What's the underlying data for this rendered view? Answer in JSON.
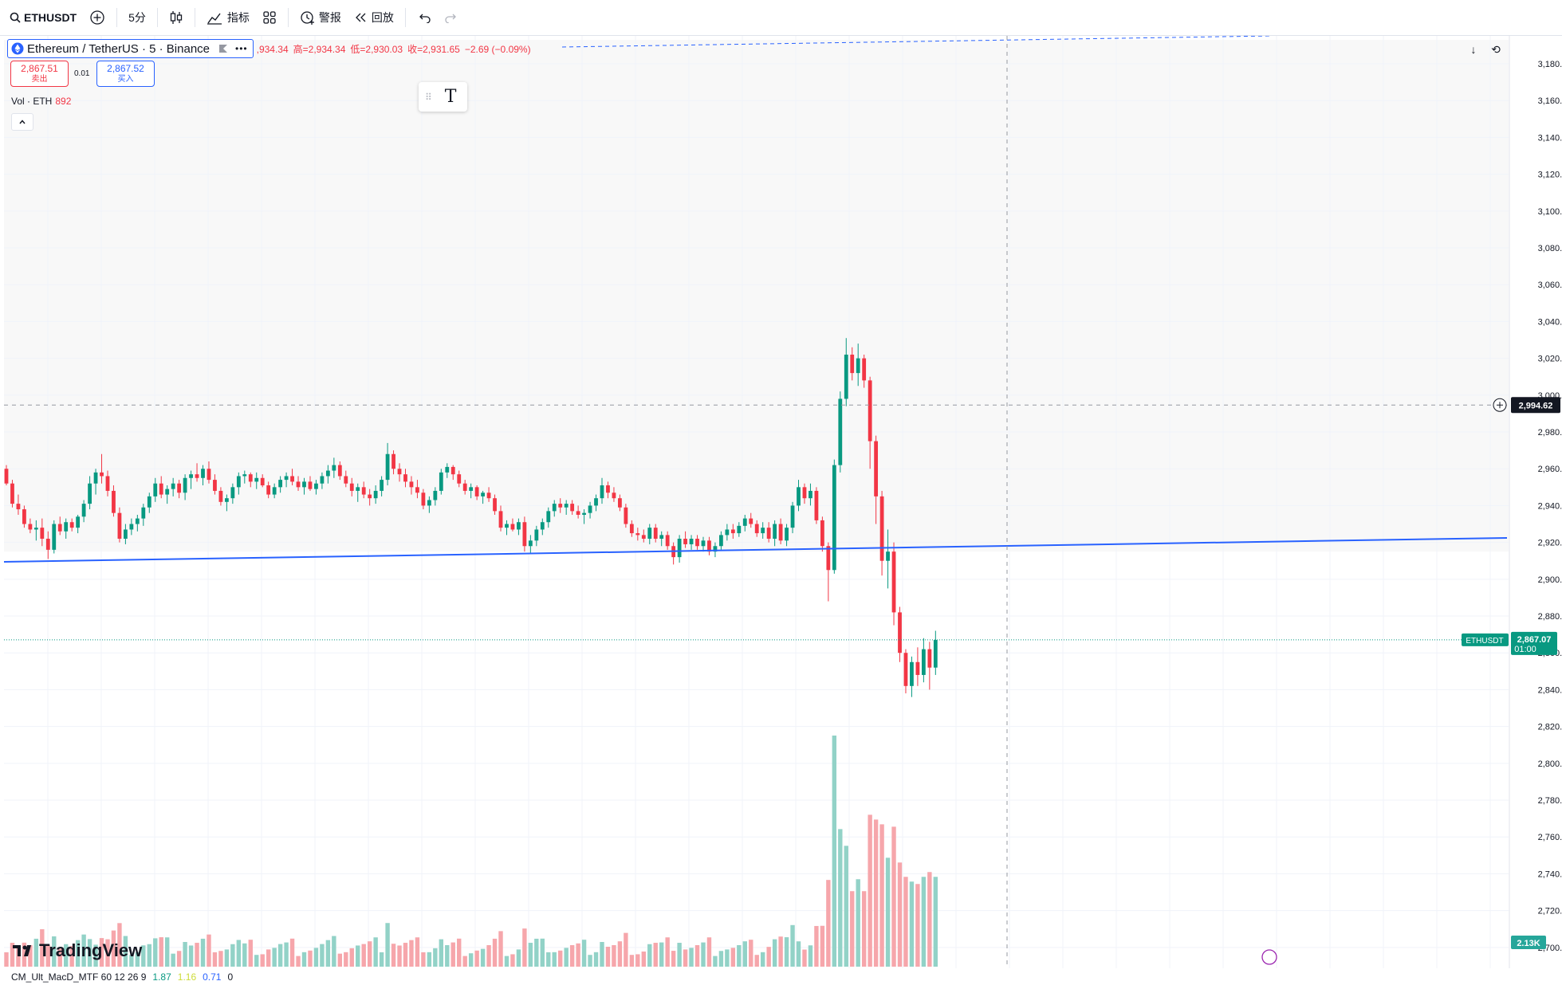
{
  "toolbar": {
    "symbol": "ETHUSDT",
    "interval": "5分",
    "indicators_label": "指标",
    "alerts_label": "警报",
    "replay_label": "回放"
  },
  "legend": {
    "title": "Ethereum / TetherUS · 5 · Binance",
    "ohlc": {
      "open": ",934.34",
      "high": "高=2,934.34",
      "low": "低=2,930.03",
      "close": "收=2,931.65",
      "change": "−2.69 (−0.09%)"
    }
  },
  "trade": {
    "sell_price": "2,867.51",
    "sell_label": "卖出",
    "spread": "0.01",
    "buy_price": "2,867.52",
    "buy_label": "买入"
  },
  "volume_legend": {
    "label": "Vol · ETH",
    "value": "892"
  },
  "price_axis": {
    "ticks": [
      "3,180.00",
      "3,160.00",
      "3,140.00",
      "3,120.00",
      "3,100.00",
      "3,080.00",
      "3,060.00",
      "3,040.00",
      "3,020.00",
      "3,000.00",
      "2,980.00",
      "2,960.00",
      "2,940.00",
      "2,920.00",
      "2,900.00",
      "2,880.00",
      "2,860.00",
      "2,840.00",
      "2,820.00",
      "2,800.00",
      "2,780.00",
      "2,760.00",
      "2,740.00",
      "2,720.00",
      "2,700.00"
    ],
    "crosshair_price": "2,994.62",
    "last_symbol": "ETHUSDT",
    "last_price": "2,867.07",
    "countdown": "01:00",
    "volume_badge": "2.13K"
  },
  "bottom_indicator": {
    "name": "CM_Ult_MacD_MTF 60 12 26 9",
    "v1": "1.87",
    "v2": "1.16",
    "v3": "0.71",
    "v4": "0"
  },
  "brand": {
    "logo_text": "TradingView"
  },
  "colors": {
    "up": "#089981",
    "down": "#f23645",
    "up_vol": "#92d2c7",
    "down_vol": "#f6a6ab",
    "trendline": "#2962ff"
  },
  "chart_data": {
    "type": "candlestick",
    "ylim": [
      2693,
      3193
    ],
    "candles": [
      [
        2960,
        2962,
        2951,
        2952
      ],
      [
        2952,
        2954,
        2939,
        2941
      ],
      [
        2941,
        2946,
        2935,
        2938
      ],
      [
        2938,
        2940,
        2928,
        2930
      ],
      [
        2930,
        2933,
        2925,
        2927
      ],
      [
        2927,
        2932,
        2921,
        2928
      ],
      [
        2928,
        2933,
        2918,
        2922
      ],
      [
        2922,
        2926,
        2911,
        2916
      ],
      [
        2916,
        2932,
        2914,
        2930
      ],
      [
        2930,
        2934,
        2924,
        2926
      ],
      [
        2926,
        2933,
        2922,
        2931
      ],
      [
        2931,
        2933,
        2926,
        2928
      ],
      [
        2928,
        2935,
        2925,
        2934
      ],
      [
        2934,
        2943,
        2931,
        2941
      ],
      [
        2941,
        2956,
        2938,
        2952
      ],
      [
        2952,
        2960,
        2946,
        2958
      ],
      [
        2958,
        2968,
        2952,
        2956
      ],
      [
        2956,
        2959,
        2945,
        2948
      ],
      [
        2948,
        2951,
        2934,
        2936
      ],
      [
        2936,
        2939,
        2920,
        2922
      ],
      [
        2922,
        2930,
        2919,
        2927
      ],
      [
        2927,
        2933,
        2924,
        2930
      ],
      [
        2930,
        2935,
        2926,
        2933
      ],
      [
        2933,
        2941,
        2929,
        2939
      ],
      [
        2939,
        2947,
        2936,
        2945
      ],
      [
        2945,
        2955,
        2942,
        2952
      ],
      [
        2952,
        2956,
        2944,
        2946
      ],
      [
        2946,
        2951,
        2941,
        2949
      ],
      [
        2949,
        2955,
        2945,
        2952
      ],
      [
        2952,
        2954,
        2944,
        2947
      ],
      [
        2947,
        2957,
        2943,
        2955
      ],
      [
        2955,
        2959,
        2949,
        2957
      ],
      [
        2957,
        2963,
        2953,
        2955
      ],
      [
        2955,
        2962,
        2951,
        2960
      ],
      [
        2960,
        2964,
        2952,
        2954
      ],
      [
        2954,
        2957,
        2946,
        2948
      ],
      [
        2948,
        2950,
        2940,
        2942
      ],
      [
        2942,
        2946,
        2937,
        2944
      ],
      [
        2944,
        2952,
        2941,
        2950
      ],
      [
        2950,
        2958,
        2946,
        2956
      ],
      [
        2956,
        2959,
        2952,
        2957
      ],
      [
        2957,
        2958,
        2950,
        2953
      ],
      [
        2953,
        2958,
        2949,
        2955
      ],
      [
        2955,
        2957,
        2950,
        2951
      ],
      [
        2951,
        2953,
        2944,
        2946
      ],
      [
        2946,
        2952,
        2944,
        2950
      ],
      [
        2950,
        2956,
        2947,
        2954
      ],
      [
        2954,
        2958,
        2950,
        2956
      ],
      [
        2956,
        2960,
        2951,
        2953
      ],
      [
        2953,
        2956,
        2948,
        2950
      ],
      [
        2950,
        2955,
        2946,
        2953
      ],
      [
        2953,
        2956,
        2948,
        2949
      ],
      [
        2949,
        2954,
        2946,
        2952
      ],
      [
        2952,
        2958,
        2949,
        2956
      ],
      [
        2956,
        2962,
        2952,
        2959
      ],
      [
        2959,
        2966,
        2955,
        2962
      ],
      [
        2962,
        2964,
        2954,
        2956
      ],
      [
        2956,
        2959,
        2950,
        2952
      ],
      [
        2952,
        2955,
        2945,
        2948
      ],
      [
        2948,
        2952,
        2942,
        2950
      ],
      [
        2950,
        2953,
        2944,
        2946
      ],
      [
        2946,
        2949,
        2940,
        2944
      ],
      [
        2944,
        2951,
        2941,
        2948
      ],
      [
        2948,
        2956,
        2945,
        2954
      ],
      [
        2954,
        2974,
        2951,
        2968
      ],
      [
        2968,
        2970,
        2957,
        2960
      ],
      [
        2960,
        2963,
        2953,
        2957
      ],
      [
        2957,
        2960,
        2950,
        2953
      ],
      [
        2953,
        2956,
        2946,
        2950
      ],
      [
        2950,
        2954,
        2944,
        2947
      ],
      [
        2947,
        2949,
        2938,
        2940
      ],
      [
        2940,
        2945,
        2936,
        2943
      ],
      [
        2943,
        2950,
        2940,
        2948
      ],
      [
        2948,
        2960,
        2946,
        2958
      ],
      [
        2958,
        2963,
        2955,
        2961
      ],
      [
        2961,
        2962,
        2954,
        2957
      ],
      [
        2957,
        2959,
        2950,
        2952
      ],
      [
        2952,
        2954,
        2946,
        2948
      ],
      [
        2948,
        2952,
        2944,
        2950
      ],
      [
        2950,
        2951,
        2943,
        2945
      ],
      [
        2945,
        2948,
        2941,
        2947
      ],
      [
        2947,
        2950,
        2942,
        2944
      ],
      [
        2944,
        2946,
        2935,
        2937
      ],
      [
        2937,
        2940,
        2926,
        2928
      ],
      [
        2928,
        2932,
        2924,
        2930
      ],
      [
        2930,
        2933,
        2926,
        2927
      ],
      [
        2927,
        2933,
        2924,
        2931
      ],
      [
        2931,
        2934,
        2915,
        2918
      ],
      [
        2918,
        2924,
        2914,
        2921
      ],
      [
        2921,
        2929,
        2918,
        2927
      ],
      [
        2927,
        2933,
        2924,
        2931
      ],
      [
        2931,
        2939,
        2928,
        2937
      ],
      [
        2937,
        2943,
        2934,
        2941
      ],
      [
        2941,
        2944,
        2936,
        2939
      ],
      [
        2939,
        2943,
        2935,
        2941
      ],
      [
        2941,
        2943,
        2935,
        2937
      ],
      [
        2937,
        2940,
        2933,
        2935
      ],
      [
        2935,
        2938,
        2930,
        2936
      ],
      [
        2936,
        2942,
        2933,
        2940
      ],
      [
        2940,
        2946,
        2937,
        2944
      ],
      [
        2944,
        2955,
        2941,
        2951
      ],
      [
        2951,
        2953,
        2944,
        2947
      ],
      [
        2947,
        2950,
        2942,
        2944
      ],
      [
        2944,
        2946,
        2937,
        2939
      ],
      [
        2939,
        2941,
        2928,
        2930
      ],
      [
        2930,
        2932,
        2923,
        2925
      ],
      [
        2925,
        2928,
        2921,
        2924
      ],
      [
        2924,
        2927,
        2920,
        2922
      ],
      [
        2922,
        2930,
        2919,
        2928
      ],
      [
        2928,
        2930,
        2920,
        2922
      ],
      [
        2922,
        2926,
        2918,
        2924
      ],
      [
        2924,
        2926,
        2916,
        2918
      ],
      [
        2918,
        2920,
        2908,
        2912
      ],
      [
        2912,
        2924,
        2909,
        2922
      ],
      [
        2922,
        2926,
        2917,
        2919
      ],
      [
        2919,
        2924,
        2916,
        2922
      ],
      [
        2922,
        2924,
        2916,
        2918
      ],
      [
        2918,
        2923,
        2915,
        2921
      ],
      [
        2921,
        2923,
        2913,
        2915
      ],
      [
        2915,
        2920,
        2912,
        2918
      ],
      [
        2918,
        2926,
        2916,
        2924
      ],
      [
        2924,
        2930,
        2921,
        2927
      ],
      [
        2927,
        2930,
        2922,
        2925
      ],
      [
        2925,
        2931,
        2923,
        2929
      ],
      [
        2929,
        2935,
        2926,
        2933
      ],
      [
        2933,
        2936,
        2928,
        2930
      ],
      [
        2930,
        2932,
        2923,
        2925
      ],
      [
        2925,
        2931,
        2922,
        2928
      ],
      [
        2928,
        2931,
        2920,
        2922
      ],
      [
        2922,
        2932,
        2918,
        2930
      ],
      [
        2930,
        2933,
        2919,
        2921
      ],
      [
        2921,
        2930,
        2918,
        2928
      ],
      [
        2928,
        2942,
        2925,
        2940
      ],
      [
        2940,
        2954,
        2937,
        2950
      ],
      [
        2950,
        2952,
        2941,
        2944
      ],
      [
        2944,
        2952,
        2940,
        2948
      ],
      [
        2948,
        2950,
        2930,
        2932
      ],
      [
        2932,
        2934,
        2915,
        2918
      ],
      [
        2918,
        2920,
        2888,
        2905
      ],
      [
        2905,
        2965,
        2903,
        2962
      ],
      [
        2962,
        3002,
        2958,
        2998
      ],
      [
        2998,
        3031,
        2994,
        3022
      ],
      [
        3022,
        3026,
        3008,
        3012
      ],
      [
        3012,
        3028,
        3005,
        3020
      ],
      [
        3020,
        3022,
        3004,
        3008
      ],
      [
        3008,
        3010,
        2960,
        2975
      ],
      [
        2975,
        2978,
        2930,
        2945
      ],
      [
        2945,
        2948,
        2902,
        2910
      ],
      [
        2910,
        2927,
        2895,
        2915
      ],
      [
        2915,
        2920,
        2875,
        2882
      ],
      [
        2882,
        2885,
        2855,
        2860
      ],
      [
        2860,
        2862,
        2838,
        2842
      ],
      [
        2842,
        2858,
        2836,
        2855
      ],
      [
        2855,
        2863,
        2842,
        2848
      ],
      [
        2848,
        2868,
        2844,
        2862
      ],
      [
        2862,
        2866,
        2840,
        2852
      ],
      [
        2852,
        2872,
        2848,
        2867
      ]
    ],
    "volume_max": 2130
  }
}
